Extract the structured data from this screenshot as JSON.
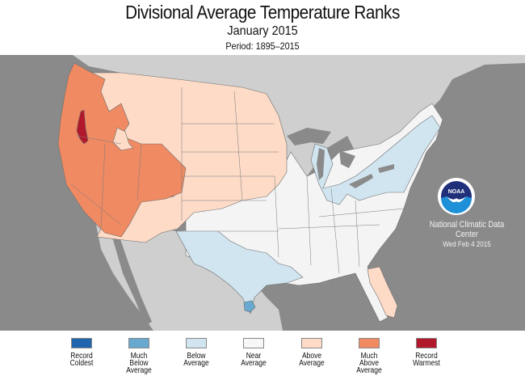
{
  "header": {
    "title": "Divisional Average Temperature Ranks",
    "subtitle": "January 2015",
    "period": "Period: 1895–2015"
  },
  "map": {
    "subject": "Climate divisions of the contiguous United States colored by January 2015 average temperature rank",
    "colors": {
      "ocean": "#8a8a8a",
      "foreign_land": "#cfcfcf",
      "border": "#6e6e6e"
    },
    "regions": [
      {
        "area": "Pacific Northwest, California, Nevada, Arizona, Utah, Idaho, western Colorado",
        "category": "Much Above Average"
      },
      {
        "area": "Central Oregon division",
        "category": "Record Warmest"
      },
      {
        "area": "Montana, Wyoming, Dakotas, Nebraska, Minnesota, New Mexico",
        "category": "Above Average"
      },
      {
        "area": "Florida peninsula",
        "category": "Above Average"
      },
      {
        "area": "Great Lakes, Ohio Valley, New York, Pennsylvania, New England",
        "category": "Below Average"
      },
      {
        "area": "Texas, Louisiana",
        "category": "Below Average"
      },
      {
        "area": "South Texas coast",
        "category": "Much Below Average"
      },
      {
        "area": "Central and southeastern states",
        "category": "Near Average"
      }
    ]
  },
  "credit": {
    "logo": "NOAA",
    "organization": "National Climatic Data Center",
    "date": "Wed Feb  4 2015"
  },
  "legend": [
    {
      "label": "Record Coldest",
      "lines": [
        "Record",
        "Coldest"
      ],
      "color": "#2166ac"
    },
    {
      "label": "Much Below Average",
      "lines": [
        "Much",
        "Below",
        "Average"
      ],
      "color": "#67a9cf"
    },
    {
      "label": "Below Average",
      "lines": [
        "Below",
        "Average"
      ],
      "color": "#d1e5f0"
    },
    {
      "label": "Near Average",
      "lines": [
        "Near",
        "Average"
      ],
      "color": "#f7f7f7"
    },
    {
      "label": "Above Average",
      "lines": [
        "Above",
        "Average"
      ],
      "color": "#fddbc7"
    },
    {
      "label": "Much Above Average",
      "lines": [
        "Much",
        "Above",
        "Average"
      ],
      "color": "#ef8a62"
    },
    {
      "label": "Record Warmest",
      "lines": [
        "Record",
        "Warmest"
      ],
      "color": "#b2182b"
    }
  ]
}
